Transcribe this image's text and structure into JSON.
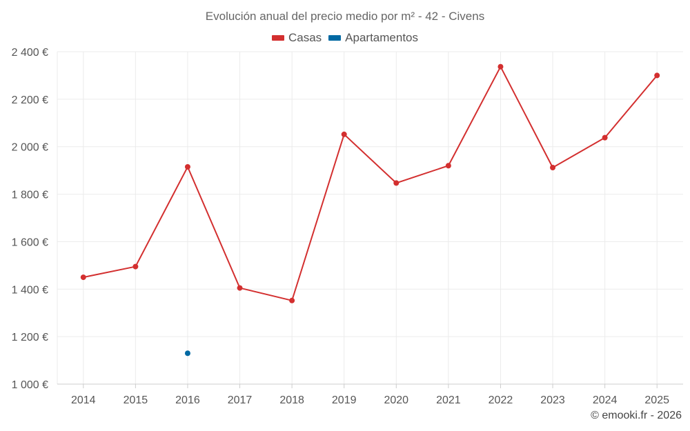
{
  "chart_data": {
    "type": "line",
    "title": "Evolución anual del precio medio por m² - 42 - Civens",
    "categories": [
      "2014",
      "2015",
      "2016",
      "2017",
      "2018",
      "2019",
      "2020",
      "2021",
      "2022",
      "2023",
      "2024",
      "2025"
    ],
    "series": [
      {
        "name": "Casas",
        "color": "#d32f2f",
        "values": [
          1450,
          1495,
          1915,
          1405,
          1352,
          2052,
          1847,
          1920,
          2337,
          1912,
          2038,
          2300
        ]
      },
      {
        "name": "Apartamentos",
        "color": "#0069a3",
        "values": [
          null,
          null,
          1130,
          null,
          null,
          null,
          null,
          null,
          null,
          null,
          null,
          null
        ]
      }
    ],
    "yticks": [
      "1 000 €",
      "1 200 €",
      "1 400 €",
      "1 600 €",
      "1 800 €",
      "2 000 €",
      "2 200 €",
      "2 400 €"
    ],
    "ytick_values": [
      1000,
      1200,
      1400,
      1600,
      1800,
      2000,
      2200,
      2400
    ],
    "ylim": [
      1000,
      2400
    ],
    "xlabel": "",
    "ylabel": "",
    "grid": true,
    "legend_position": "top-center"
  },
  "footer": {
    "credit": "© emooki.fr - 2026"
  }
}
